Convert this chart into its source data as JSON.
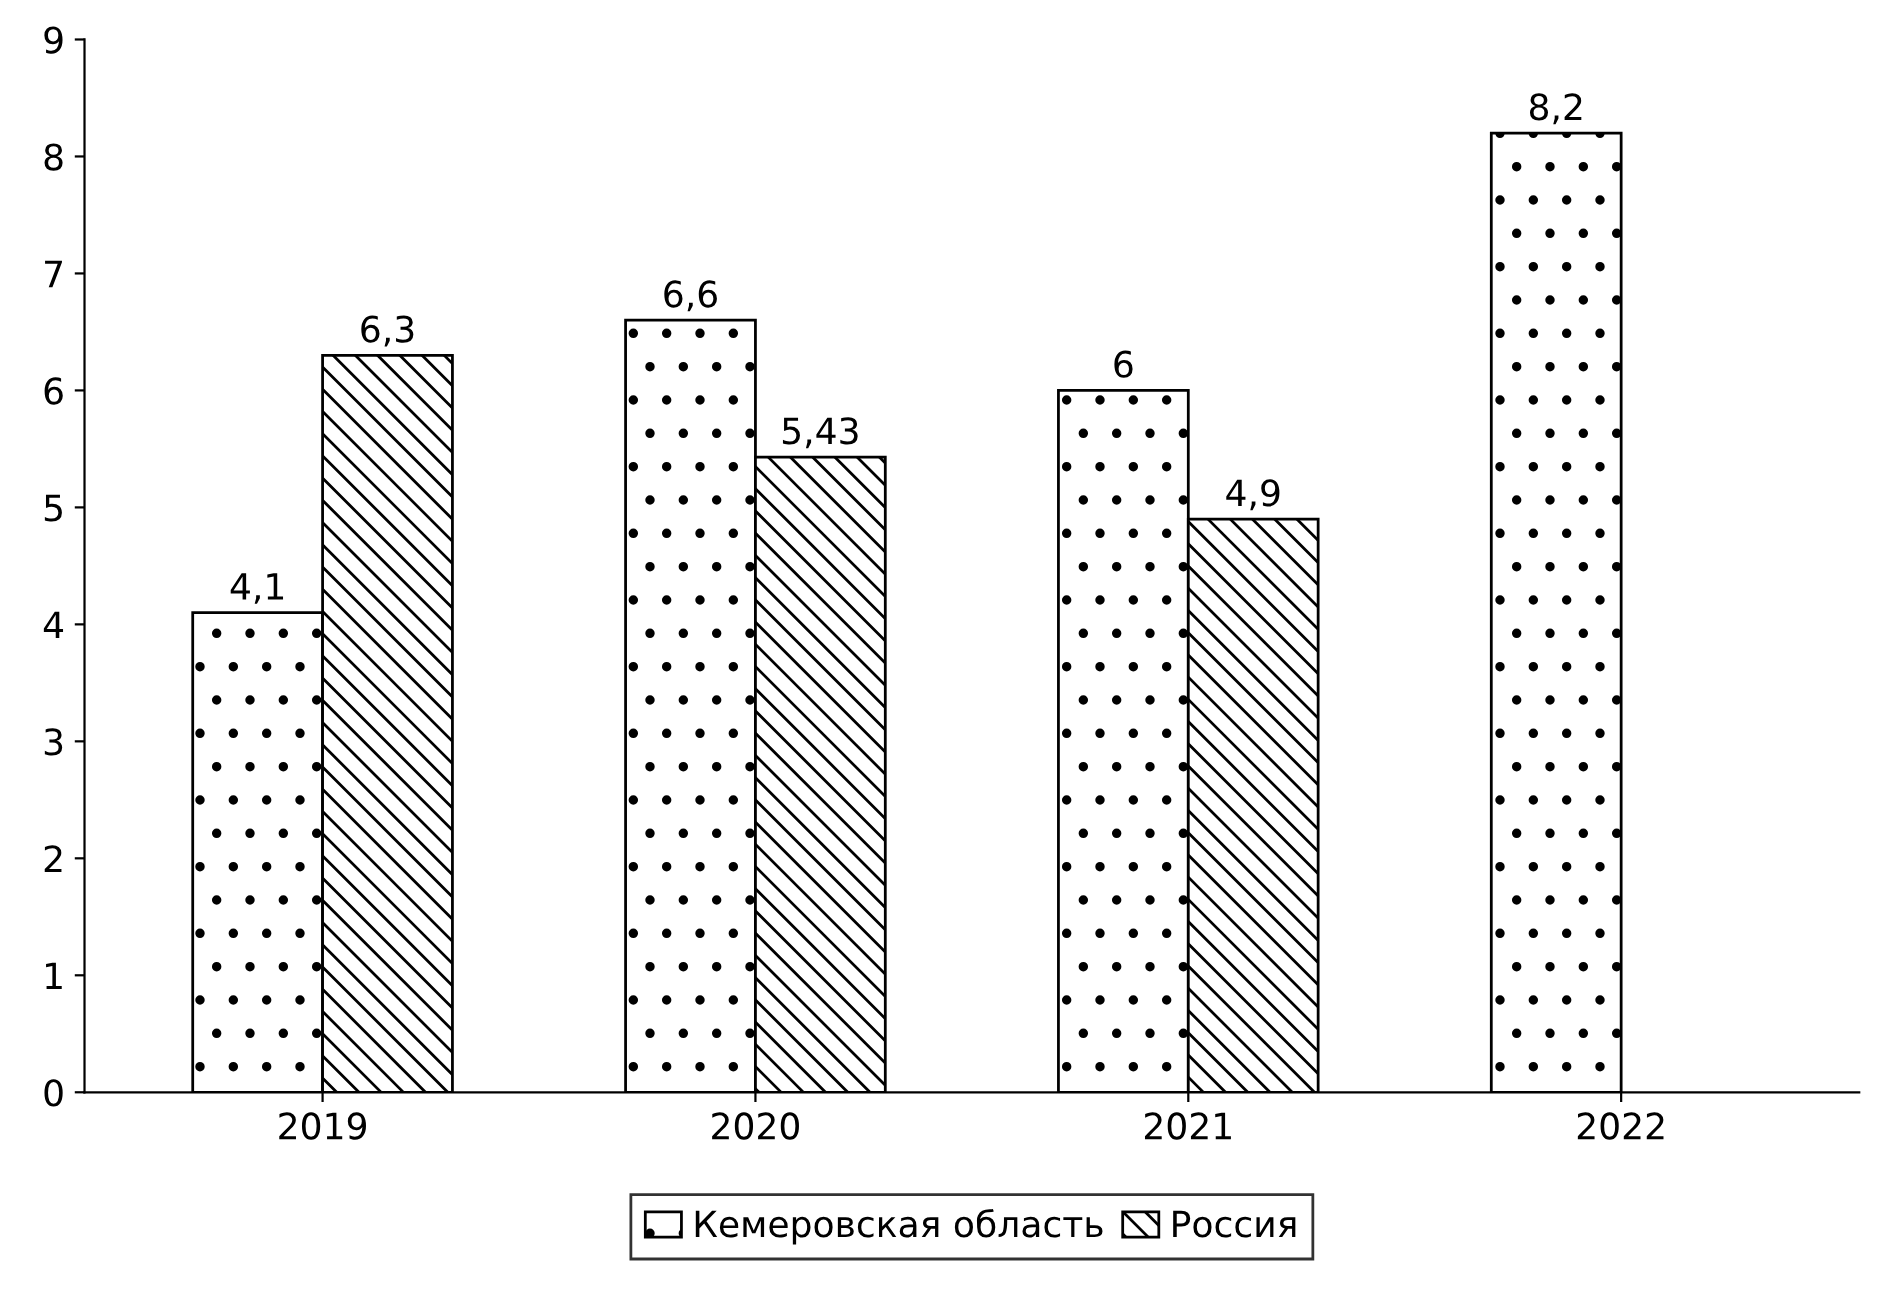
{
  "chart_data": {
    "type": "bar",
    "categories": [
      "2019",
      "2020",
      "2021",
      "2022"
    ],
    "series": [
      {
        "name": "Кемеровская область",
        "color": "#000000",
        "values": [
          4.1,
          6.6,
          6,
          8.2
        ],
        "value_labels": [
          "4,1",
          "6,6",
          "6",
          "8,2"
        ]
      },
      {
        "name": "Россия",
        "color": "#000000",
        "values": [
          6.3,
          5.43,
          4.9,
          null
        ],
        "value_labels": [
          "6,3",
          "5,43",
          "4,9",
          null
        ]
      }
    ],
    "ylim": [
      0,
      9
    ],
    "yticks": [
      0,
      1,
      2,
      3,
      4,
      5,
      6,
      7,
      8,
      9
    ],
    "grid": false,
    "legend": "bottom"
  }
}
